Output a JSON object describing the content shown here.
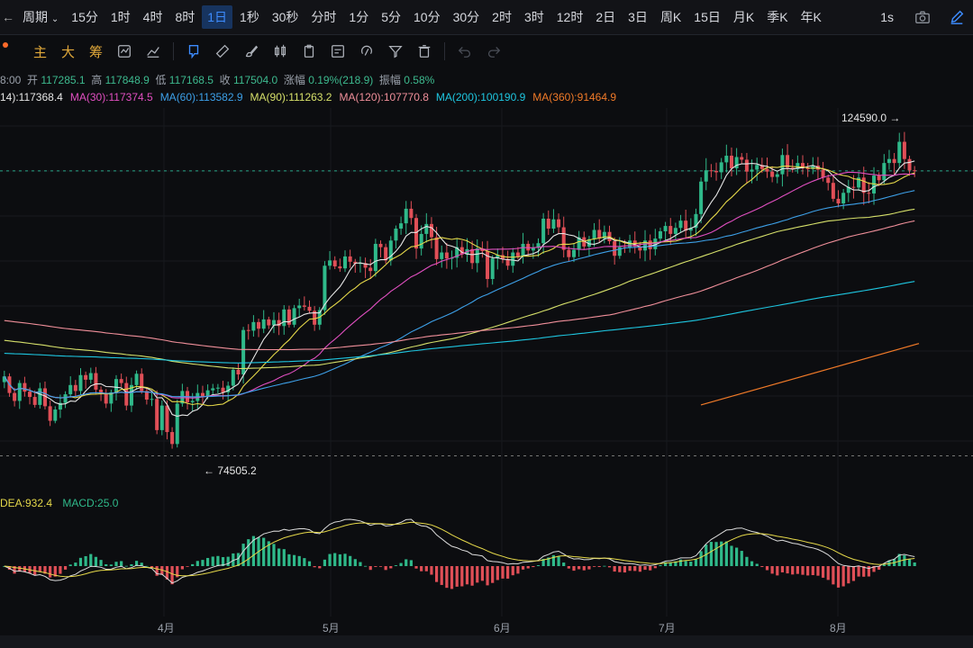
{
  "topbar": {
    "back_arrow": "←",
    "period_label": "周期",
    "timeframes": [
      "15分",
      "1时",
      "4时",
      "8时",
      "1日",
      "1秒",
      "30秒",
      "分时",
      "1分",
      "5分",
      "10分",
      "30分",
      "2时",
      "3时",
      "12时",
      "2日",
      "3日",
      "周K",
      "15日",
      "月K",
      "季K",
      "年K"
    ],
    "active_timeframe": "1日",
    "right_label": "1s"
  },
  "toolbar": {
    "chars": [
      "主",
      "大",
      "筹"
    ]
  },
  "ohlc": {
    "time_suffix": "8:00",
    "open_label": "开",
    "open": "117285.1",
    "high_label": "高",
    "high": "117848.9",
    "low_label": "低",
    "low": "117168.5",
    "close_label": "收",
    "close": "117504.0",
    "change_label": "涨幅",
    "change": "0.19%(218.9)",
    "amp_label": "振幅",
    "amp": "0.58%"
  },
  "ma": [
    {
      "text": "14):117368.4",
      "color": "#e6e6e6"
    },
    {
      "text": "MA(30):117374.5",
      "color": "#e04fc0"
    },
    {
      "text": "MA(60):113582.9",
      "color": "#3da0e8"
    },
    {
      "text": "MA(90):111263.2",
      "color": "#d6e06a"
    },
    {
      "text": "MA(120):107770.8",
      "color": "#f08f9a"
    },
    {
      "text": "MA(200):100190.9",
      "color": "#1ec6e0"
    },
    {
      "text": "MA(360):91464.9",
      "color": "#f07a28"
    }
  ],
  "labels": {
    "high_price": "124590.0 →",
    "low_price": "← 74505.2"
  },
  "macd": {
    "dea": "DEA:932.4",
    "macd": "MACD:25.0"
  },
  "months": [
    "4月",
    "5月",
    "6月",
    "7月",
    "8月"
  ],
  "chart_data": {
    "type": "candlestick",
    "price_range": [
      72000,
      127000
    ],
    "x_month_labels": [
      "4月",
      "5月",
      "6月",
      "7月",
      "8月"
    ],
    "high": 124590.0,
    "low": 74505.2,
    "last_close": 117504.0,
    "ma_last": {
      "MA30": 117374.5,
      "MA60": 113582.9,
      "MA90": 111263.2,
      "MA120": 107770.8,
      "MA200": 100190.9,
      "MA360": 91464.9
    },
    "colors": {
      "up": "#2fb98a",
      "down": "#e04f57"
    },
    "closes": [
      86500,
      84000,
      82800,
      85500,
      84200,
      83400,
      82200,
      84700,
      82000,
      79800,
      81500,
      82500,
      83800,
      85200,
      84300,
      86700,
      86000,
      87000,
      84500,
      83900,
      82400,
      84100,
      86100,
      85500,
      82100,
      85200,
      86900,
      84300,
      83000,
      83100,
      78400,
      82100,
      78100,
      76300,
      82400,
      84300,
      82600,
      82800,
      84000,
      83400,
      84400,
      84700,
      84800,
      84100,
      85100,
      87500,
      86800,
      93500,
      93400,
      94700,
      93700,
      95100,
      94200,
      95000,
      94100,
      96600,
      94300,
      96800,
      97200,
      97000,
      96400,
      94300,
      96500,
      103200,
      104000,
      103100,
      102800,
      104600,
      103800,
      103500,
      103600,
      102900,
      102400,
      106500,
      106000,
      104000,
      107000,
      108800,
      109600,
      111800,
      110400,
      105800,
      108000,
      109500,
      107500,
      104200,
      105200,
      104300,
      104400,
      106000,
      104900,
      105700,
      103600,
      105800,
      105400,
      101200,
      104300,
      104800,
      104200,
      103200,
      105200,
      104600,
      106500,
      105500,
      105900,
      106600,
      110300,
      108800,
      110200,
      109000,
      105600,
      104500,
      105600,
      107500,
      106100,
      107200,
      108600,
      107300,
      108300,
      106900,
      104700,
      106000,
      105900,
      107000,
      106100,
      105500,
      107000,
      105700,
      107300,
      108400,
      109200,
      108000,
      108900,
      110000,
      108500,
      108900,
      111000,
      115900,
      117600,
      117500,
      117300,
      118800,
      119800,
      117900,
      119600,
      119200,
      117400,
      117700,
      118400,
      117800,
      117400,
      116600,
      117000,
      119900,
      118000,
      117800,
      118700,
      117900,
      117800,
      118300,
      117700,
      116500,
      115700,
      113300,
      112600,
      114200,
      115100,
      115000,
      116500,
      114200,
      114100,
      116800,
      116100,
      118700,
      119300,
      118700,
      121900,
      119300,
      117600,
      117500
    ]
  }
}
